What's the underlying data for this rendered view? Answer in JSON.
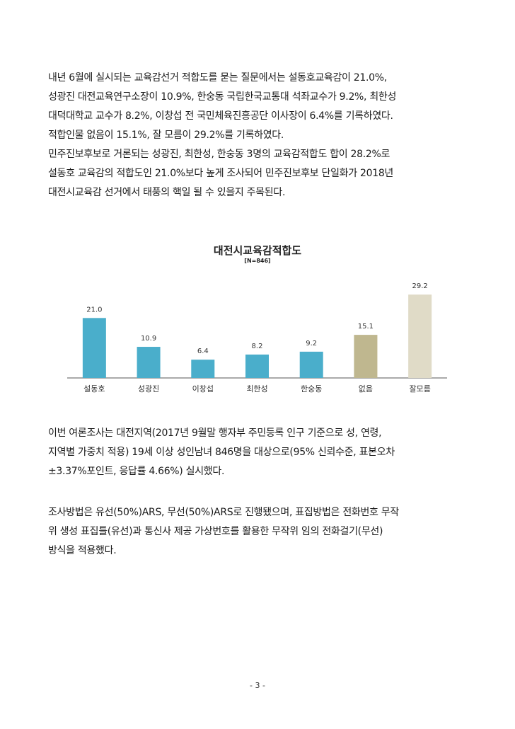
{
  "paragraphs": {
    "p1": [
      " 내년 6월에 실시되는 교육감선거 적합도를 묻는 질문에서는 설동호교육감이 21.0%,",
      "성광진 대전교육연구소장이 10.9%, 한숭동 국립한국교통대 석좌교수가 9.2%, 최한성",
      "대덕대학교 교수가 8.2%, 이창섭 전 국민체육진흥공단 이사장이 6.4%를 기록하였다.",
      "적합인물 없음이 15.1%, 잘 모름이 29.2%를 기록하였다."
    ],
    "p2": [
      "민주진보후보로 거론되는 성광진, 최한성, 한숭동 3명의 교육감적합도 합이 28.2%로",
      "설동호 교육감의 적합도인 21.0%보다 높게 조사되어 민주진보후보 단일화가 2018년",
      "대전시교육감 선거에서 태풍의 핵일 될 수 있을지 주목된다."
    ],
    "p3": [
      "이번 여론조사는 대전지역(2017년 9월말 행자부 주민등록 인구 기준으로 성, 연령,",
      "지역별 가중치 적용) 19세 이상 성인남녀 846명을 대상으로(95% 신뢰수준, 표본오차",
      "±3.37%포인트, 응답률 4.66%) 실시했다."
    ],
    "p4": [
      "조사방법은 유선(50%)ARS, 무선(50%)ARS로 진행됐으며, 표집방법은 전화번호 무작",
      "위 생성 표집틀(유선)과 통신사 제공 가상번호를 활용한 무작위 임의 전화걸기(무선)",
      "방식을 적용했다."
    ]
  },
  "page_number": "- 3 -",
  "chart_data": {
    "type": "bar",
    "title": "대전시교육감적합도",
    "subtitle": "[N=846]",
    "categories": [
      "설동호",
      "성광진",
      "이창섭",
      "최한성",
      "한숭동",
      "없음",
      "잘모름"
    ],
    "values": [
      21.0,
      10.9,
      6.4,
      8.2,
      9.2,
      15.1,
      29.2
    ],
    "value_labels": [
      "21.0",
      "10.9",
      "6.4",
      "8.2",
      "9.2",
      "15.1",
      "29.2"
    ],
    "colors": [
      "#4aaecb",
      "#4aaecb",
      "#4aaecb",
      "#4aaecb",
      "#4aaecb",
      "#bfb78f",
      "#e0dbc7"
    ],
    "ylim": [
      0,
      30
    ],
    "grid": false,
    "legend": false
  }
}
